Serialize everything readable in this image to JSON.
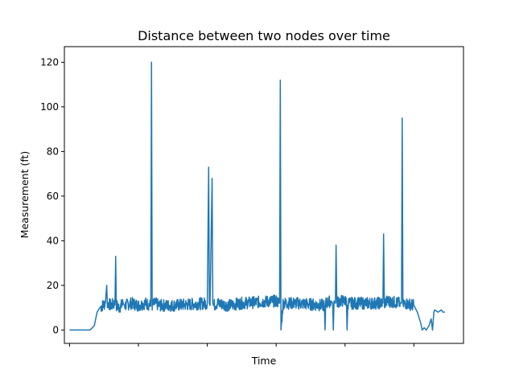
{
  "chart_data": {
    "type": "line",
    "title": "Distance between two nodes over time",
    "xlabel": "Time",
    "ylabel": "Measurement (ft)",
    "xlim": [
      -7.5,
      572
    ],
    "ylim": [
      -6,
      127
    ],
    "xticks": [
      0,
      100,
      200,
      300,
      400,
      500
    ],
    "xtick_labels_visible": false,
    "yticks": [
      0,
      20,
      40,
      60,
      80,
      100,
      120
    ],
    "ytick_labels": [
      "0",
      "20",
      "40",
      "60",
      "80",
      "100",
      "120"
    ],
    "grid": false,
    "legend": "none",
    "series": [
      {
        "color": "#1f77b4",
        "x": [
          0,
          10,
          20,
          30,
          36,
          40,
          44,
          48,
          52,
          54,
          55,
          56,
          60,
          66,
          67,
          68,
          72,
          78,
          80,
          90,
          100,
          110,
          118,
          119,
          120,
          124,
          130,
          150,
          200,
          202,
          203,
          204,
          207,
          208,
          209,
          215,
          230,
          250,
          300,
          305,
          306,
          307,
          310,
          330,
          370,
          371,
          372,
          380,
          382,
          383,
          384,
          386,
          387,
          388,
          392,
          402,
          403,
          404,
          408,
          430,
          455,
          456,
          457,
          462,
          480,
          482,
          483,
          484,
          488,
          500,
          505,
          510,
          512,
          515,
          518,
          522,
          525,
          527,
          528,
          529,
          530,
          535,
          540,
          542,
          545
        ],
        "y": [
          0,
          0,
          0,
          0,
          2,
          8,
          10,
          11,
          12,
          20,
          10,
          12,
          11,
          12,
          33,
          11,
          10,
          12,
          11,
          12,
          11,
          12,
          11,
          120,
          11,
          12,
          11,
          11,
          12,
          73,
          12,
          11,
          68,
          12,
          11,
          12,
          11,
          12,
          13,
          12,
          112,
          0,
          12,
          12,
          11,
          0,
          12,
          13,
          12,
          0,
          13,
          12,
          38,
          12,
          13,
          13,
          0,
          12,
          12,
          12,
          12,
          43,
          12,
          13,
          12,
          12,
          95,
          11,
          12,
          11,
          8,
          3,
          0,
          1,
          0,
          2,
          5,
          0,
          4,
          8,
          9,
          8,
          9,
          8,
          8
        ]
      }
    ]
  }
}
